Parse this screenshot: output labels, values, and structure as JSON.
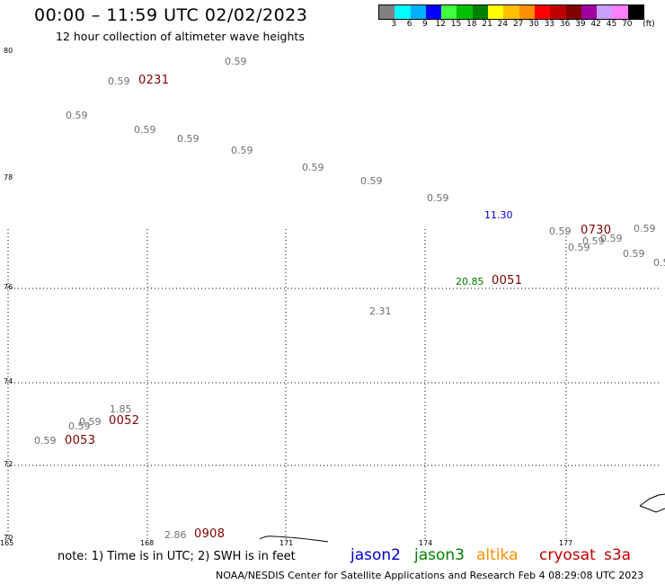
{
  "header": {
    "title": "00:00 – 11:59 UTC 02/02/2023",
    "subtitle": "12 hour collection of altimeter wave heights"
  },
  "legend": {
    "colors": [
      "#808080",
      "#00ffff",
      "#00b0ff",
      "#0000ff",
      "#40ff40",
      "#00c000",
      "#008000",
      "#ffff00",
      "#ffc000",
      "#ff9000",
      "#ff0000",
      "#c00000",
      "#800000",
      "#a000a0",
      "#c8a0ff",
      "#ff80ff",
      "#000000"
    ],
    "tick_labels": [
      "3",
      "6",
      "9",
      "12",
      "15",
      "18",
      "21",
      "24",
      "27",
      "30",
      "33",
      "36",
      "39",
      "42",
      "45",
      "70"
    ],
    "unit": "(ft)"
  },
  "axes": {
    "lat_labels": [
      "80",
      "78",
      "76",
      "74",
      "72",
      "70"
    ],
    "lon_labels": [
      "165",
      "168",
      "171",
      "174",
      "177"
    ]
  },
  "observations": [
    {
      "text": "0.59",
      "color": "#707070"
    },
    {
      "text": "0.59",
      "color": "#707070"
    },
    {
      "text": "0.59",
      "color": "#707070"
    },
    {
      "text": "0.59",
      "color": "#707070"
    },
    {
      "text": "0.59",
      "color": "#707070"
    },
    {
      "text": "0.59",
      "color": "#707070"
    },
    {
      "text": "0.59",
      "color": "#707070"
    },
    {
      "text": "0.59",
      "color": "#707070"
    },
    {
      "text": "0.59",
      "color": "#707070"
    },
    {
      "text": "11.30",
      "color": "#0000cc"
    },
    {
      "text": "0.59",
      "color": "#707070"
    },
    {
      "text": "0.59",
      "color": "#707070"
    },
    {
      "text": "0.59",
      "color": "#707070"
    },
    {
      "text": "0.59",
      "color": "#707070"
    },
    {
      "text": "0.59",
      "color": "#707070"
    },
    {
      "text": "0.59",
      "color": "#707070"
    },
    {
      "text": "0.5",
      "color": "#707070"
    },
    {
      "text": "20.85",
      "color": "#008000"
    },
    {
      "text": "2.31",
      "color": "#707070"
    },
    {
      "text": "1.85",
      "color": "#707070"
    },
    {
      "text": "0.59",
      "color": "#707070"
    },
    {
      "text": "0.59",
      "color": "#707070"
    },
    {
      "text": "0.59",
      "color": "#707070"
    },
    {
      "text": "2.86",
      "color": "#707070"
    }
  ],
  "pass_times": [
    "0231",
    "0730",
    "0051",
    "0052",
    "0053",
    "0908"
  ],
  "footer": {
    "note": "note: 1) Time is in UTC; 2) SWH is in feet",
    "satellites": [
      {
        "name": "jason2",
        "color": "#0000cc"
      },
      {
        "name": "jason3",
        "color": "#008000"
      },
      {
        "name": "altika",
        "color": "#ff9000"
      },
      {
        "name": "cryosat",
        "color": "#c00000"
      },
      {
        "name": "s3a",
        "color": "#c00000"
      }
    ],
    "credit": "NOAA/NESDIS Center for Satellite Applications and Research    Feb  4 08:29:08 UTC 2023"
  }
}
